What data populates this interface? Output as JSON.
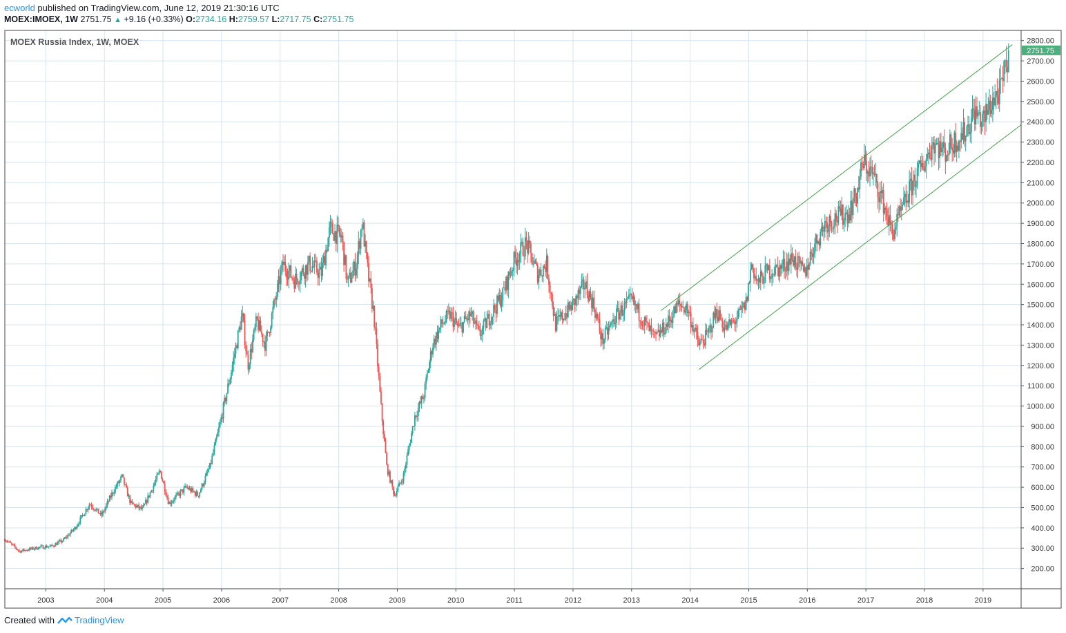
{
  "header": {
    "user": "ecworld",
    "published": "published on TradingView.com, June 12, 2019 21:30:16 UTC",
    "symbol": "MOEX:IMOEX, 1W",
    "last": "2751.75",
    "change": "+9.16 (+0.33%)",
    "open_label": "O:",
    "open": "2734.16",
    "high_label": "H:",
    "high": "2759.57",
    "low_label": "L:",
    "low": "2717.75",
    "close_label": "C:",
    "close": "2751.75"
  },
  "footer": {
    "created_with": "Created with",
    "brand": "TradingView"
  },
  "colors": {
    "up": "#26a69a",
    "down": "#ef5350",
    "grid": "#d6e4f0",
    "channel": "#43a047",
    "price_tag": "#4caf7d"
  },
  "chart_data": {
    "type": "candlestick",
    "title": "MOEX Russia Index, 1W, MOEX",
    "x_ticks": [
      "2003",
      "2004",
      "2005",
      "2006",
      "2007",
      "2008",
      "2009",
      "2010",
      "2011",
      "2012",
      "2013",
      "2014",
      "2015",
      "2016",
      "2017",
      "2018",
      "2019"
    ],
    "y_ticks": [
      "200.00",
      "300.00",
      "400.00",
      "500.00",
      "600.00",
      "700.00",
      "800.00",
      "900.00",
      "1000.00",
      "1100.00",
      "1200.00",
      "1300.00",
      "1400.00",
      "1500.00",
      "1600.00",
      "1700.00",
      "1800.00",
      "1900.00",
      "2000.00",
      "2100.00",
      "2200.00",
      "2300.00",
      "2400.00",
      "2500.00",
      "2600.00",
      "2700.00",
      "2800.00"
    ],
    "ylim": [
      100,
      2850
    ],
    "xlim": [
      2002.3,
      2019.65
    ],
    "last_price_label": "2751.75",
    "price_path": [
      [
        2002.3,
        345
      ],
      [
        2002.55,
        285
      ],
      [
        2002.9,
        305
      ],
      [
        2003.1,
        310
      ],
      [
        2003.3,
        340
      ],
      [
        2003.5,
        400
      ],
      [
        2003.75,
        520
      ],
      [
        2003.95,
        460
      ],
      [
        2004.15,
        580
      ],
      [
        2004.3,
        650
      ],
      [
        2004.45,
        520
      ],
      [
        2004.65,
        490
      ],
      [
        2004.95,
        680
      ],
      [
        2005.1,
        520
      ],
      [
        2005.4,
        600
      ],
      [
        2005.6,
        560
      ],
      [
        2005.8,
        700
      ],
      [
        2005.95,
        880
      ],
      [
        2006.15,
        1150
      ],
      [
        2006.35,
        1450
      ],
      [
        2006.45,
        1200
      ],
      [
        2006.6,
        1420
      ],
      [
        2006.75,
        1300
      ],
      [
        2006.9,
        1500
      ],
      [
        2007.05,
        1700
      ],
      [
        2007.25,
        1620
      ],
      [
        2007.5,
        1700
      ],
      [
        2007.7,
        1650
      ],
      [
        2007.85,
        1870
      ],
      [
        2008.05,
        1830
      ],
      [
        2008.15,
        1600
      ],
      [
        2008.3,
        1700
      ],
      [
        2008.4,
        1910
      ],
      [
        2008.5,
        1650
      ],
      [
        2008.6,
        1450
      ],
      [
        2008.72,
        1000
      ],
      [
        2008.82,
        700
      ],
      [
        2008.95,
        560
      ],
      [
        2009.1,
        650
      ],
      [
        2009.3,
        950
      ],
      [
        2009.45,
        1050
      ],
      [
        2009.6,
        1300
      ],
      [
        2009.75,
        1400
      ],
      [
        2009.9,
        1450
      ],
      [
        2010.05,
        1380
      ],
      [
        2010.25,
        1450
      ],
      [
        2010.4,
        1350
      ],
      [
        2010.6,
        1450
      ],
      [
        2010.8,
        1550
      ],
      [
        2011.0,
        1720
      ],
      [
        2011.2,
        1800
      ],
      [
        2011.4,
        1650
      ],
      [
        2011.55,
        1700
      ],
      [
        2011.7,
        1400
      ],
      [
        2011.85,
        1450
      ],
      [
        2012.0,
        1500
      ],
      [
        2012.2,
        1600
      ],
      [
        2012.35,
        1500
      ],
      [
        2012.5,
        1320
      ],
      [
        2012.75,
        1450
      ],
      [
        2013.0,
        1520
      ],
      [
        2013.2,
        1420
      ],
      [
        2013.4,
        1330
      ],
      [
        2013.6,
        1400
      ],
      [
        2013.8,
        1500
      ],
      [
        2013.95,
        1480
      ],
      [
        2014.15,
        1300
      ],
      [
        2014.3,
        1350
      ],
      [
        2014.45,
        1470
      ],
      [
        2014.6,
        1380
      ],
      [
        2014.8,
        1430
      ],
      [
        2014.95,
        1500
      ],
      [
        2015.05,
        1700
      ],
      [
        2015.15,
        1600
      ],
      [
        2015.3,
        1660
      ],
      [
        2015.55,
        1680
      ],
      [
        2015.75,
        1730
      ],
      [
        2015.95,
        1650
      ],
      [
        2016.1,
        1780
      ],
      [
        2016.3,
        1900
      ],
      [
        2016.5,
        1930
      ],
      [
        2016.7,
        1950
      ],
      [
        2016.85,
        2050
      ],
      [
        2016.95,
        2200
      ],
      [
        2017.1,
        2150
      ],
      [
        2017.3,
        2000
      ],
      [
        2017.45,
        1850
      ],
      [
        2017.6,
        1950
      ],
      [
        2017.8,
        2100
      ],
      [
        2018.0,
        2200
      ],
      [
        2018.15,
        2300
      ],
      [
        2018.35,
        2250
      ],
      [
        2018.5,
        2300
      ],
      [
        2018.7,
        2350
      ],
      [
        2018.85,
        2450
      ],
      [
        2019.0,
        2400
      ],
      [
        2019.15,
        2500
      ],
      [
        2019.3,
        2550
      ],
      [
        2019.45,
        2751.75
      ]
    ],
    "channel_upper": [
      [
        2013.5,
        1470
      ],
      [
        2019.5,
        2780
      ]
    ],
    "channel_lower": [
      [
        2014.15,
        1180
      ],
      [
        2019.65,
        2385
      ]
    ]
  }
}
